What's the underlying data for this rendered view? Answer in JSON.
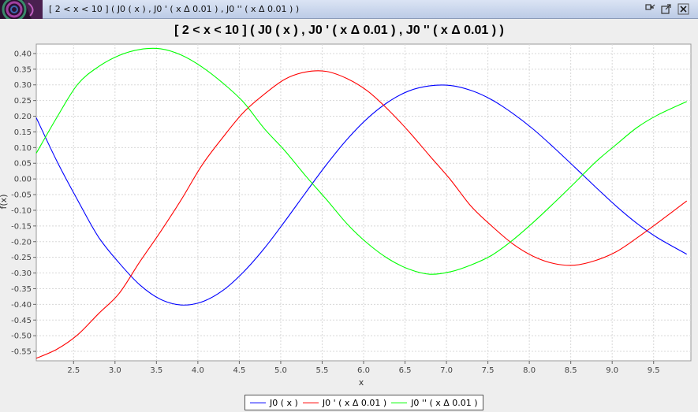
{
  "window": {
    "title": "[ 2 < x < 10  ]  ( J0 ( x ) , J0 ' ( x Δ 0.01 ) , J0 '' ( x Δ 0.01 ) )",
    "icons": [
      "app-icon",
      "minimize-icon",
      "maximize-icon",
      "close-icon"
    ]
  },
  "chart_data": {
    "type": "line",
    "title": "[ 2 < x < 10  ]  ( J0 ( x ) , J0 ' ( x Δ 0.01 ) , J0 '' ( x Δ 0.01 ) )",
    "xlabel": "x",
    "ylabel": "f(x)",
    "xlim": [
      2.05,
      9.95
    ],
    "ylim": [
      -0.58,
      0.43
    ],
    "xticks": [
      "2.5",
      "3.0",
      "3.5",
      "4.0",
      "4.5",
      "5.0",
      "5.5",
      "6.0",
      "6.5",
      "7.0",
      "7.5",
      "8.0",
      "8.5",
      "9.0",
      "9.5"
    ],
    "yticks": [
      "0.40",
      "0.35",
      "0.30",
      "0.25",
      "0.20",
      "0.15",
      "0.10",
      "0.05",
      "0.00",
      "-0.05",
      "-0.10",
      "-0.15",
      "-0.20",
      "-0.25",
      "-0.30",
      "-0.35",
      "-0.40",
      "-0.45",
      "-0.50",
      "-0.55"
    ],
    "grid": true,
    "legend_position": "bottom",
    "x": [
      2.05,
      2.3,
      2.55,
      2.8,
      3.05,
      3.3,
      3.55,
      3.8,
      4.05,
      4.3,
      4.55,
      4.8,
      5.05,
      5.3,
      5.55,
      5.8,
      6.05,
      6.3,
      6.55,
      6.8,
      7.05,
      7.3,
      7.55,
      7.8,
      8.05,
      8.3,
      8.55,
      8.8,
      9.05,
      9.3,
      9.55,
      9.9
    ],
    "series": [
      {
        "name": "J0 ( x )",
        "color": "#0000ff",
        "values": [
          0.195,
          0.056,
          -0.068,
          -0.185,
          -0.268,
          -0.338,
          -0.384,
          -0.402,
          -0.392,
          -0.356,
          -0.297,
          -0.222,
          -0.135,
          -0.044,
          0.045,
          0.126,
          0.194,
          0.246,
          0.281,
          0.297,
          0.298,
          0.282,
          0.252,
          0.209,
          0.158,
          0.099,
          0.037,
          -0.026,
          -0.087,
          -0.142,
          -0.188,
          -0.24
        ]
      },
      {
        "name": "J0 ' ( x Δ 0.01 )",
        "color": "#ff0000",
        "values": [
          -0.572,
          -0.543,
          -0.497,
          -0.43,
          -0.365,
          -0.264,
          -0.168,
          -0.066,
          0.044,
          0.132,
          0.212,
          0.27,
          0.318,
          0.341,
          0.343,
          0.32,
          0.28,
          0.22,
          0.15,
          0.073,
          -0.003,
          -0.088,
          -0.151,
          -0.207,
          -0.247,
          -0.27,
          -0.275,
          -0.26,
          -0.232,
          -0.188,
          -0.14,
          -0.07
        ]
      },
      {
        "name": "J0 '' ( x Δ 0.01 )",
        "color": "#00ff00",
        "values": [
          0.082,
          0.197,
          0.302,
          0.358,
          0.394,
          0.413,
          0.415,
          0.395,
          0.357,
          0.306,
          0.245,
          0.161,
          0.09,
          0.01,
          -0.065,
          -0.143,
          -0.206,
          -0.255,
          -0.288,
          -0.304,
          -0.296,
          -0.274,
          -0.243,
          -0.195,
          -0.138,
          -0.076,
          -0.012,
          0.054,
          0.11,
          0.164,
          0.204,
          0.247
        ]
      }
    ]
  }
}
